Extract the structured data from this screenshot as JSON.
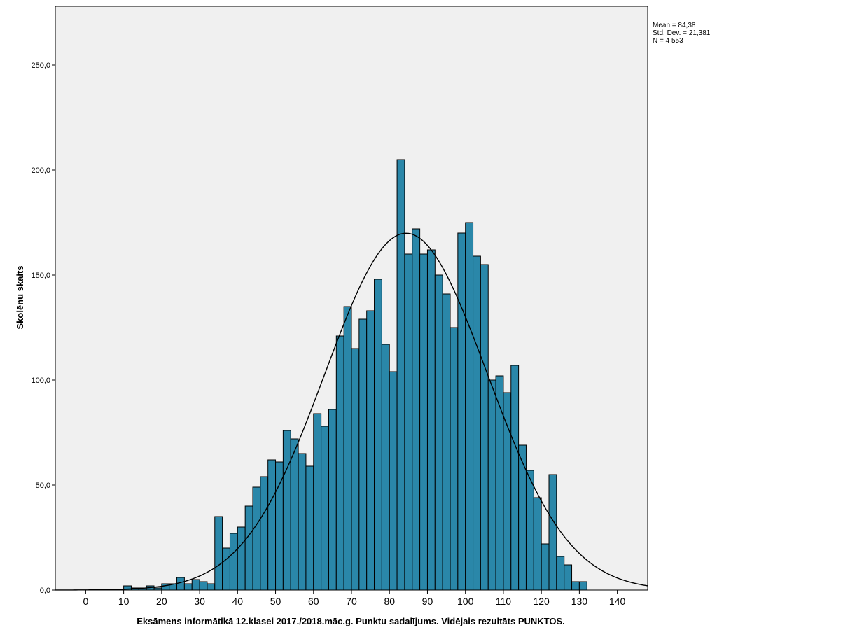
{
  "chart_data": {
    "type": "bar",
    "title": "",
    "xlabel": "Eksāmens informātikā 12.klasei 2017./2018.māc.g. Punktu sadalījums. Vidējais rezultāts PUNKTOS.",
    "ylabel": "Skolēnu skaits",
    "xlim": [
      -8,
      148
    ],
    "ylim": [
      0,
      278
    ],
    "x_ticks": [
      "0",
      "10",
      "20",
      "30",
      "40",
      "50",
      "60",
      "70",
      "80",
      "90",
      "100",
      "110",
      "120",
      "130",
      "140"
    ],
    "y_ticks": [
      "0,0",
      "50,0",
      "100,0",
      "150,0",
      "200,0",
      "250,0"
    ],
    "bin_width": 2,
    "bins": [
      {
        "x": 11,
        "count": 2
      },
      {
        "x": 13,
        "count": 1
      },
      {
        "x": 15,
        "count": 1
      },
      {
        "x": 17,
        "count": 2
      },
      {
        "x": 19,
        "count": 1
      },
      {
        "x": 21,
        "count": 3
      },
      {
        "x": 23,
        "count": 3
      },
      {
        "x": 25,
        "count": 6
      },
      {
        "x": 27,
        "count": 3
      },
      {
        "x": 29,
        "count": 5
      },
      {
        "x": 31,
        "count": 4
      },
      {
        "x": 33,
        "count": 3
      },
      {
        "x": 35,
        "count": 35
      },
      {
        "x": 37,
        "count": 20
      },
      {
        "x": 39,
        "count": 27
      },
      {
        "x": 41,
        "count": 30
      },
      {
        "x": 43,
        "count": 40
      },
      {
        "x": 45,
        "count": 49
      },
      {
        "x": 47,
        "count": 54
      },
      {
        "x": 49,
        "count": 62
      },
      {
        "x": 51,
        "count": 61
      },
      {
        "x": 53,
        "count": 76
      },
      {
        "x": 55,
        "count": 72
      },
      {
        "x": 57,
        "count": 65
      },
      {
        "x": 59,
        "count": 59
      },
      {
        "x": 61,
        "count": 84
      },
      {
        "x": 63,
        "count": 78
      },
      {
        "x": 65,
        "count": 86
      },
      {
        "x": 67,
        "count": 121
      },
      {
        "x": 69,
        "count": 135
      },
      {
        "x": 71,
        "count": 115
      },
      {
        "x": 73,
        "count": 129
      },
      {
        "x": 75,
        "count": 133
      },
      {
        "x": 77,
        "count": 148
      },
      {
        "x": 79,
        "count": 117
      },
      {
        "x": 81,
        "count": 104
      },
      {
        "x": 83,
        "count": 205
      },
      {
        "x": 85,
        "count": 160
      },
      {
        "x": 87,
        "count": 172
      },
      {
        "x": 89,
        "count": 160
      },
      {
        "x": 91,
        "count": 162
      },
      {
        "x": 93,
        "count": 150
      },
      {
        "x": 95,
        "count": 141
      },
      {
        "x": 97,
        "count": 125
      },
      {
        "x": 99,
        "count": 170
      },
      {
        "x": 101,
        "count": 175
      },
      {
        "x": 103,
        "count": 159
      },
      {
        "x": 105,
        "count": 155
      },
      {
        "x": 107,
        "count": 100
      },
      {
        "x": 109,
        "count": 102
      },
      {
        "x": 111,
        "count": 94
      },
      {
        "x": 113,
        "count": 107
      },
      {
        "x": 115,
        "count": 69
      },
      {
        "x": 117,
        "count": 57
      },
      {
        "x": 119,
        "count": 44
      },
      {
        "x": 121,
        "count": 22
      },
      {
        "x": 123,
        "count": 55
      },
      {
        "x": 125,
        "count": 16
      },
      {
        "x": 127,
        "count": 12
      },
      {
        "x": 129,
        "count": 4
      },
      {
        "x": 131,
        "count": 4
      }
    ],
    "normal_curve": {
      "mean": 84.38,
      "std": 21.381,
      "n": 4553
    },
    "stats_text": [
      "Mean = 84,38",
      "Std. Dev. = 21,381",
      "N = 4 553"
    ],
    "colors": {
      "bar_fill": "#2a87a9",
      "bar_stroke": "#000000",
      "plot_bg": "#f0f0f0",
      "curve": "#000000"
    },
    "grid": false,
    "legend": "none"
  }
}
